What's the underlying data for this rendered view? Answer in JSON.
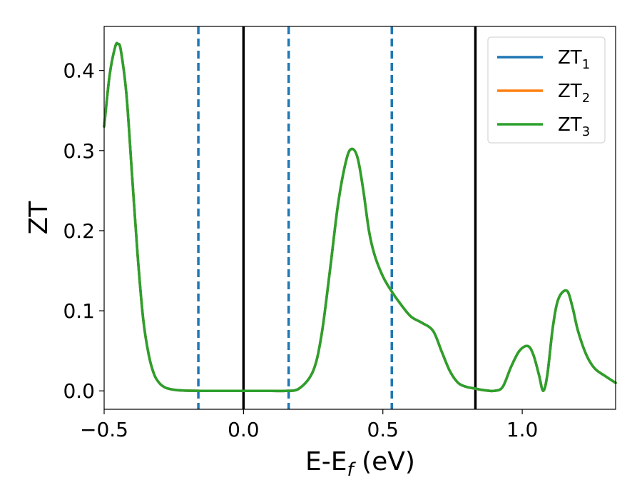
{
  "chart_data": {
    "type": "line",
    "xlabel": "E-E",
    "xlabel_sub": "f",
    "xlabel_unit": " (eV)",
    "ylabel": "ZT",
    "xlim": [
      -0.5,
      1.335
    ],
    "ylim": [
      -0.023,
      0.455
    ],
    "xticks": [
      -0.5,
      0.0,
      0.5,
      1.0
    ],
    "xtick_labels": [
      "−0.5",
      "0.0",
      "0.5",
      "1.0"
    ],
    "yticks": [
      0.0,
      0.1,
      0.2,
      0.3,
      0.4
    ],
    "ytick_labels": [
      "0.0",
      "0.1",
      "0.2",
      "0.3",
      "0.4"
    ],
    "grid": false,
    "legend_position": "top-right",
    "vlines": [
      {
        "x": -0.162,
        "style": "dashed",
        "color": "#1f77b4"
      },
      {
        "x": 0.0,
        "style": "solid",
        "color": "#000000"
      },
      {
        "x": 0.162,
        "style": "dashed",
        "color": "#1f77b4"
      },
      {
        "x": 0.532,
        "style": "dashed",
        "color": "#1f77b4"
      },
      {
        "x": 0.832,
        "style": "solid",
        "color": "#000000"
      }
    ],
    "x": [
      -0.5,
      -0.48,
      -0.46,
      -0.45,
      -0.44,
      -0.42,
      -0.4,
      -0.38,
      -0.36,
      -0.34,
      -0.32,
      -0.3,
      -0.28,
      -0.26,
      -0.24,
      -0.22,
      -0.2,
      -0.15,
      -0.1,
      0.0,
      0.1,
      0.15,
      0.2,
      0.25,
      0.28,
      0.31,
      0.34,
      0.37,
      0.39,
      0.41,
      0.43,
      0.45,
      0.47,
      0.5,
      0.53,
      0.56,
      0.6,
      0.64,
      0.68,
      0.71,
      0.74,
      0.77,
      0.8,
      0.83,
      0.86,
      0.9,
      0.93,
      0.96,
      0.99,
      1.02,
      1.04,
      1.06,
      1.075,
      1.09,
      1.11,
      1.13,
      1.16,
      1.18,
      1.2,
      1.23,
      1.26,
      1.3,
      1.335
    ],
    "series": [
      {
        "name": "ZT",
        "name_sub": "1",
        "color": "#1f77b4",
        "values": [
          0.33,
          0.395,
          0.43,
          0.433,
          0.425,
          0.37,
          0.27,
          0.17,
          0.09,
          0.045,
          0.02,
          0.009,
          0.004,
          0.002,
          0.001,
          0.0005,
          0.0002,
          0.0,
          0.0,
          0.0,
          0.0,
          0.0,
          0.003,
          0.025,
          0.07,
          0.15,
          0.235,
          0.29,
          0.302,
          0.29,
          0.25,
          0.2,
          0.17,
          0.143,
          0.125,
          0.11,
          0.093,
          0.085,
          0.075,
          0.05,
          0.025,
          0.01,
          0.005,
          0.003,
          0.001,
          0.0,
          0.005,
          0.03,
          0.05,
          0.056,
          0.045,
          0.02,
          0.0,
          0.02,
          0.08,
          0.115,
          0.125,
          0.105,
          0.075,
          0.045,
          0.028,
          0.018,
          0.01
        ]
      },
      {
        "name": "ZT",
        "name_sub": "2",
        "color": "#ff7f0e",
        "values": [
          0.33,
          0.395,
          0.43,
          0.433,
          0.425,
          0.37,
          0.27,
          0.17,
          0.09,
          0.045,
          0.02,
          0.009,
          0.004,
          0.002,
          0.001,
          0.0005,
          0.0002,
          0.0,
          0.0,
          0.0,
          0.0,
          0.0,
          0.003,
          0.025,
          0.07,
          0.15,
          0.235,
          0.29,
          0.302,
          0.29,
          0.25,
          0.2,
          0.17,
          0.143,
          0.125,
          0.11,
          0.093,
          0.085,
          0.075,
          0.05,
          0.025,
          0.01,
          0.005,
          0.003,
          0.001,
          0.0,
          0.005,
          0.03,
          0.05,
          0.056,
          0.045,
          0.02,
          0.0,
          0.02,
          0.08,
          0.115,
          0.125,
          0.105,
          0.075,
          0.045,
          0.028,
          0.018,
          0.01
        ]
      },
      {
        "name": "ZT",
        "name_sub": "3",
        "color": "#2ca02c",
        "values": [
          0.33,
          0.395,
          0.43,
          0.433,
          0.425,
          0.37,
          0.27,
          0.17,
          0.09,
          0.045,
          0.02,
          0.009,
          0.004,
          0.002,
          0.001,
          0.0005,
          0.0002,
          0.0,
          0.0,
          0.0,
          0.0,
          0.0,
          0.003,
          0.025,
          0.07,
          0.15,
          0.235,
          0.29,
          0.302,
          0.29,
          0.25,
          0.2,
          0.17,
          0.143,
          0.125,
          0.11,
          0.093,
          0.085,
          0.075,
          0.05,
          0.025,
          0.01,
          0.005,
          0.003,
          0.001,
          0.0,
          0.005,
          0.03,
          0.05,
          0.056,
          0.045,
          0.02,
          0.0,
          0.02,
          0.08,
          0.115,
          0.125,
          0.105,
          0.075,
          0.045,
          0.028,
          0.018,
          0.01
        ]
      }
    ]
  }
}
